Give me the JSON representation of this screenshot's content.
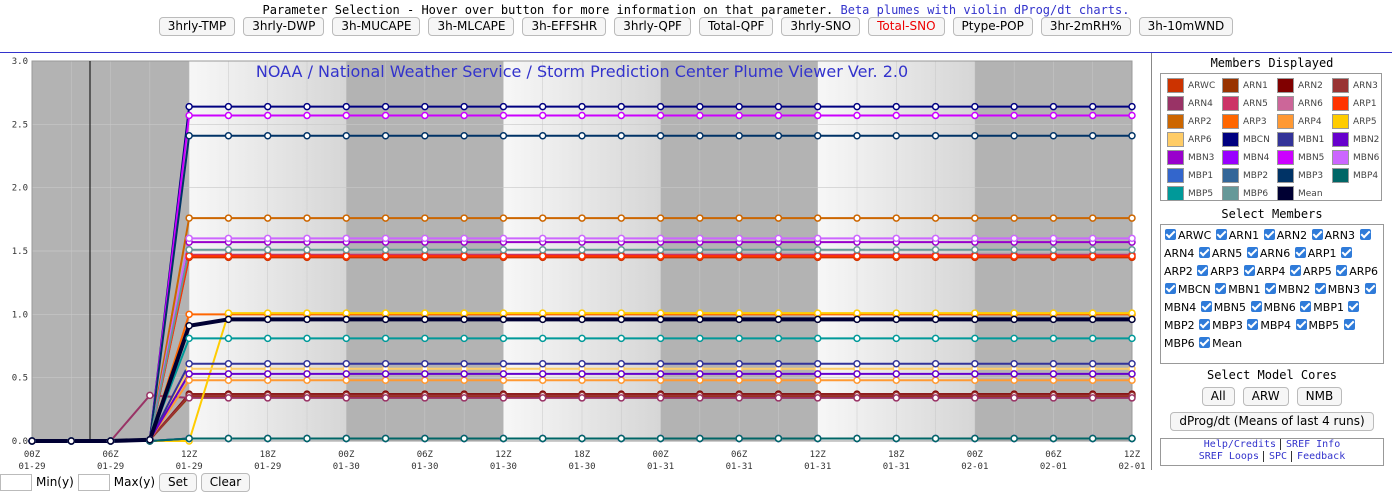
{
  "header": {
    "text": "Parameter Selection - Hover over button for more information on that parameter.",
    "link": "Beta plumes with violin dProg/dt charts.",
    "buttons": [
      "3hrly-TMP",
      "3hrly-DWP",
      "3h-MUCAPE",
      "3h-MLCAPE",
      "3h-EFFSHR",
      "3hrly-QPF",
      "Total-QPF",
      "3hrly-SNO",
      "Total-SNO",
      "Ptype-POP",
      "3hr-2mRH%",
      "3h-10mWND"
    ],
    "selected_button": 8
  },
  "chart_data": {
    "type": "line",
    "title": "NOAA / National Weather Service / Storm Prediction Center Plume Viewer Ver. 2.0",
    "categories": [
      "00Z",
      null,
      "06Z",
      null,
      "12Z",
      null,
      "18Z",
      null,
      "00Z",
      null,
      "06Z",
      null,
      "12Z",
      null,
      "18Z",
      null,
      "00Z",
      null,
      "06Z",
      null,
      "12Z",
      null,
      "18Z",
      null,
      "00Z",
      null,
      "06Z",
      null,
      "12Z"
    ],
    "category_dates": [
      "01-29",
      null,
      "01-29",
      null,
      "01-29",
      null,
      "01-29",
      null,
      "01-30",
      null,
      "01-30",
      null,
      "01-30",
      null,
      "01-30",
      null,
      "01-31",
      null,
      "01-31",
      null,
      "01-31",
      null,
      "01-31",
      null,
      "02-01",
      null,
      "02-01",
      null,
      "02-01"
    ],
    "ylim": [
      0,
      3
    ],
    "yticks": [
      {
        "value": 0,
        "label": "0.0"
      },
      {
        "value": 0.5,
        "label": "0.5"
      },
      {
        "value": 1,
        "label": "1.0"
      },
      {
        "value": 1.5,
        "label": "1.5"
      },
      {
        "value": 2,
        "label": "2.0"
      },
      {
        "value": 2.5,
        "label": "2.5"
      },
      {
        "value": 3,
        "label": "3.0"
      }
    ],
    "grid": true,
    "series": [
      {
        "name": "ARWC",
        "color": "#cc3300",
        "values": [
          0,
          0,
          0,
          0.01,
          1.45,
          1.45,
          1.45,
          1.45,
          1.45,
          1.45,
          1.45,
          1.45,
          1.45,
          1.45,
          1.45,
          1.45,
          1.45,
          1.45,
          1.45,
          1.45,
          1.45,
          1.45,
          1.45,
          1.45,
          1.45,
          1.45,
          1.45,
          1.45,
          1.45
        ]
      },
      {
        "name": "ARN1",
        "color": "#993300",
        "values": [
          0,
          0,
          0,
          0.01,
          0.35,
          0.35,
          0.35,
          0.35,
          0.35,
          0.35,
          0.35,
          0.35,
          0.35,
          0.35,
          0.35,
          0.35,
          0.35,
          0.35,
          0.35,
          0.35,
          0.35,
          0.35,
          0.35,
          0.35,
          0.35,
          0.35,
          0.35,
          0.35,
          0.35
        ]
      },
      {
        "name": "ARN2",
        "color": "#800000",
        "values": [
          0,
          0,
          0,
          0.01,
          0.37,
          0.37,
          0.37,
          0.37,
          0.37,
          0.37,
          0.37,
          0.37,
          0.37,
          0.37,
          0.37,
          0.37,
          0.37,
          0.37,
          0.37,
          0.37,
          0.37,
          0.37,
          0.37,
          0.37,
          0.37,
          0.37,
          0.37,
          0.37,
          0.37
        ]
      },
      {
        "name": "ARN3",
        "color": "#993333",
        "values": [
          0,
          0,
          0,
          0.01,
          0.36,
          0.36,
          0.36,
          0.36,
          0.36,
          0.36,
          0.36,
          0.36,
          0.36,
          0.36,
          0.36,
          0.36,
          0.36,
          0.36,
          0.36,
          0.36,
          0.36,
          0.36,
          0.36,
          0.36,
          0.36,
          0.36,
          0.36,
          0.36,
          0.36
        ]
      },
      {
        "name": "ARN4",
        "color": "#993366",
        "values": [
          0,
          0,
          0,
          0.36,
          0.34,
          0.34,
          0.34,
          0.34,
          0.34,
          0.34,
          0.34,
          0.34,
          0.34,
          0.34,
          0.34,
          0.34,
          0.34,
          0.34,
          0.34,
          0.34,
          0.34,
          0.34,
          0.34,
          0.34,
          0.34,
          0.34,
          0.34,
          0.34,
          0.34
        ]
      },
      {
        "name": "ARN5",
        "color": "#cc3366",
        "values": [
          0,
          0,
          0,
          0.01,
          1.47,
          1.47,
          1.47,
          1.47,
          1.47,
          1.47,
          1.47,
          1.47,
          1.47,
          1.47,
          1.47,
          1.47,
          1.47,
          1.47,
          1.47,
          1.47,
          1.47,
          1.47,
          1.47,
          1.47,
          1.47,
          1.47,
          1.47,
          1.47,
          1.47
        ]
      },
      {
        "name": "ARN6",
        "color": "#cc6699",
        "values": [
          0,
          0,
          0,
          0,
          0.02,
          0.02,
          0.02,
          0.02,
          0.02,
          0.02,
          0.02,
          0.02,
          0.02,
          0.02,
          0.02,
          0.02,
          0.02,
          0.02,
          0.02,
          0.02,
          0.02,
          0.02,
          0.02,
          0.02,
          0.02,
          0.02,
          0.02,
          0.02,
          0.02
        ]
      },
      {
        "name": "ARP1",
        "color": "#ff3300",
        "values": [
          0,
          0,
          0,
          0.01,
          1.46,
          1.46,
          1.46,
          1.46,
          1.46,
          1.46,
          1.46,
          1.46,
          1.46,
          1.46,
          1.46,
          1.46,
          1.46,
          1.46,
          1.46,
          1.46,
          1.46,
          1.46,
          1.46,
          1.46,
          1.46,
          1.46,
          1.46,
          1.46,
          1.46
        ]
      },
      {
        "name": "ARP2",
        "color": "#cc6600",
        "values": [
          0,
          0,
          0,
          0.01,
          1.76,
          1.76,
          1.76,
          1.76,
          1.76,
          1.76,
          1.76,
          1.76,
          1.76,
          1.76,
          1.76,
          1.76,
          1.76,
          1.76,
          1.76,
          1.76,
          1.76,
          1.76,
          1.76,
          1.76,
          1.76,
          1.76,
          1.76,
          1.76,
          1.76
        ]
      },
      {
        "name": "ARP3",
        "color": "#ff6600",
        "values": [
          0,
          0,
          0,
          0.01,
          1,
          1,
          1,
          1,
          1,
          1,
          1,
          1,
          1,
          1,
          1,
          1,
          1,
          1,
          1,
          1,
          1,
          1,
          1,
          1,
          1,
          1,
          1,
          1,
          1
        ]
      },
      {
        "name": "ARP4",
        "color": "#ff9933",
        "values": [
          0,
          0,
          0,
          0.01,
          0.48,
          0.48,
          0.48,
          0.48,
          0.48,
          0.48,
          0.48,
          0.48,
          0.48,
          0.48,
          0.48,
          0.48,
          0.48,
          0.48,
          0.48,
          0.48,
          0.48,
          0.48,
          0.48,
          0.48,
          0.48,
          0.48,
          0.48,
          0.48,
          0.48
        ]
      },
      {
        "name": "ARP5",
        "color": "#ffcc00",
        "values": [
          0,
          0,
          0,
          0,
          0,
          1.01,
          1.01,
          1.01,
          1.01,
          1.01,
          1.01,
          1.01,
          1.01,
          1.01,
          1.01,
          1.01,
          1.01,
          1.01,
          1.01,
          1.01,
          1.01,
          1.01,
          1.01,
          1.01,
          1.01,
          1.01,
          1.01,
          1.01,
          1.01
        ]
      },
      {
        "name": "ARP6",
        "color": "#ffcc66",
        "values": [
          0,
          0,
          0,
          0.01,
          0.57,
          0.57,
          0.57,
          0.57,
          0.57,
          0.57,
          0.57,
          0.57,
          0.57,
          0.57,
          0.57,
          0.57,
          0.57,
          0.57,
          0.57,
          0.57,
          0.57,
          0.57,
          0.57,
          0.57,
          0.57,
          0.57,
          0.57,
          0.57,
          0.57
        ]
      },
      {
        "name": "MBCN",
        "color": "#000080",
        "values": [
          0,
          0,
          0,
          0.01,
          2.64,
          2.64,
          2.64,
          2.64,
          2.64,
          2.64,
          2.64,
          2.64,
          2.64,
          2.64,
          2.64,
          2.64,
          2.64,
          2.64,
          2.64,
          2.64,
          2.64,
          2.64,
          2.64,
          2.64,
          2.64,
          2.64,
          2.64,
          2.64,
          2.64
        ]
      },
      {
        "name": "MBN1",
        "color": "#333399",
        "values": [
          0,
          0,
          0,
          0.01,
          0.61,
          0.61,
          0.61,
          0.61,
          0.61,
          0.61,
          0.61,
          0.61,
          0.61,
          0.61,
          0.61,
          0.61,
          0.61,
          0.61,
          0.61,
          0.61,
          0.61,
          0.61,
          0.61,
          0.61,
          0.61,
          0.61,
          0.61,
          0.61,
          0.61
        ]
      },
      {
        "name": "MBN2",
        "color": "#6600cc",
        "values": [
          0,
          0,
          0,
          0.01,
          0.53,
          0.53,
          0.53,
          0.53,
          0.53,
          0.53,
          0.53,
          0.53,
          0.53,
          0.53,
          0.53,
          0.53,
          0.53,
          0.53,
          0.53,
          0.53,
          0.53,
          0.53,
          0.53,
          0.53,
          0.53,
          0.53,
          0.53,
          0.53,
          0.53
        ]
      },
      {
        "name": "MBN3",
        "color": "#9900cc",
        "values": [
          0,
          0,
          0,
          0.01,
          1.57,
          1.57,
          1.57,
          1.57,
          1.57,
          1.57,
          1.57,
          1.57,
          1.57,
          1.57,
          1.57,
          1.57,
          1.57,
          1.57,
          1.57,
          1.57,
          1.57,
          1.57,
          1.57,
          1.57,
          1.57,
          1.57,
          1.57,
          1.57,
          1.57
        ]
      },
      {
        "name": "MBN4",
        "color": "#9900ff",
        "values": [
          0,
          0,
          0,
          0,
          0.02,
          0.02,
          0.02,
          0.02,
          0.02,
          0.02,
          0.02,
          0.02,
          0.02,
          0.02,
          0.02,
          0.02,
          0.02,
          0.02,
          0.02,
          0.02,
          0.02,
          0.02,
          0.02,
          0.02,
          0.02,
          0.02,
          0.02,
          0.02,
          0.02
        ]
      },
      {
        "name": "MBN5",
        "color": "#cc00ff",
        "values": [
          0,
          0,
          0,
          0.01,
          2.57,
          2.57,
          2.57,
          2.57,
          2.57,
          2.57,
          2.57,
          2.57,
          2.57,
          2.57,
          2.57,
          2.57,
          2.57,
          2.57,
          2.57,
          2.57,
          2.57,
          2.57,
          2.57,
          2.57,
          2.57,
          2.57,
          2.57,
          2.57,
          2.57
        ]
      },
      {
        "name": "MBN6",
        "color": "#cc66ff",
        "values": [
          0,
          0,
          0,
          0.01,
          1.6,
          1.6,
          1.6,
          1.6,
          1.6,
          1.6,
          1.6,
          1.6,
          1.6,
          1.6,
          1.6,
          1.6,
          1.6,
          1.6,
          1.6,
          1.6,
          1.6,
          1.6,
          1.6,
          1.6,
          1.6,
          1.6,
          1.6,
          1.6,
          1.6
        ]
      },
      {
        "name": "MBP1",
        "color": "#3366cc",
        "values": [
          0,
          0,
          0,
          0,
          0.02,
          0.02,
          0.02,
          0.02,
          0.02,
          0.02,
          0.02,
          0.02,
          0.02,
          0.02,
          0.02,
          0.02,
          0.02,
          0.02,
          0.02,
          0.02,
          0.02,
          0.02,
          0.02,
          0.02,
          0.02,
          0.02,
          0.02,
          0.02,
          0.02
        ]
      },
      {
        "name": "MBP2",
        "color": "#336699",
        "values": [
          0,
          0,
          0,
          0,
          0.02,
          0.02,
          0.02,
          0.02,
          0.02,
          0.02,
          0.02,
          0.02,
          0.02,
          0.02,
          0.02,
          0.02,
          0.02,
          0.02,
          0.02,
          0.02,
          0.02,
          0.02,
          0.02,
          0.02,
          0.02,
          0.02,
          0.02,
          0.02,
          0.02
        ]
      },
      {
        "name": "MBP3",
        "color": "#003366",
        "values": [
          0,
          0,
          0,
          0.01,
          2.41,
          2.41,
          2.41,
          2.41,
          2.41,
          2.41,
          2.41,
          2.41,
          2.41,
          2.41,
          2.41,
          2.41,
          2.41,
          2.41,
          2.41,
          2.41,
          2.41,
          2.41,
          2.41,
          2.41,
          2.41,
          2.41,
          2.41,
          2.41,
          2.41
        ]
      },
      {
        "name": "MBP4",
        "color": "#006666",
        "values": [
          0,
          0,
          0,
          0,
          0.02,
          0.02,
          0.02,
          0.02,
          0.02,
          0.02,
          0.02,
          0.02,
          0.02,
          0.02,
          0.02,
          0.02,
          0.02,
          0.02,
          0.02,
          0.02,
          0.02,
          0.02,
          0.02,
          0.02,
          0.02,
          0.02,
          0.02,
          0.02,
          0.02
        ]
      },
      {
        "name": "MBP5",
        "color": "#009999",
        "values": [
          0,
          0,
          0,
          0.01,
          0.81,
          0.81,
          0.81,
          0.81,
          0.81,
          0.81,
          0.81,
          0.81,
          0.81,
          0.81,
          0.81,
          0.81,
          0.81,
          0.81,
          0.81,
          0.81,
          0.81,
          0.81,
          0.81,
          0.81,
          0.81,
          0.81,
          0.81,
          0.81,
          0.81
        ]
      },
      {
        "name": "MBP6",
        "color": "#669999",
        "values": [
          0,
          0,
          0,
          0.01,
          1.51,
          1.51,
          1.51,
          1.51,
          1.51,
          1.51,
          1.51,
          1.51,
          1.51,
          1.51,
          1.51,
          1.51,
          1.51,
          1.51,
          1.51,
          1.51,
          1.51,
          1.51,
          1.51,
          1.51,
          1.51,
          1.51,
          1.51,
          1.51,
          1.51
        ]
      },
      {
        "name": "Mean",
        "color": "#000033",
        "values": [
          0,
          0,
          0,
          0.01,
          0.91,
          0.96,
          0.96,
          0.96,
          0.96,
          0.96,
          0.96,
          0.96,
          0.96,
          0.96,
          0.96,
          0.96,
          0.96,
          0.96,
          0.96,
          0.96,
          0.96,
          0.96,
          0.96,
          0.96,
          0.96,
          0.96,
          0.96,
          0.96,
          0.96
        ]
      }
    ]
  },
  "sidebar": {
    "members_title": "Members Displayed",
    "select_title": "Select Members",
    "cores_title": "Select Model Cores",
    "core_buttons": [
      "All",
      "ARW",
      "NMB"
    ],
    "dprog_button": "dProg/dt (Means of last 4 runs)",
    "links": [
      "Help/Credits",
      "SREF Info",
      "SREF Loops",
      "SPC",
      "Feedback"
    ]
  },
  "controls": {
    "min_label": "Min(y)",
    "max_label": "Max(y)",
    "buttons": [
      "Set",
      "Clear"
    ]
  }
}
